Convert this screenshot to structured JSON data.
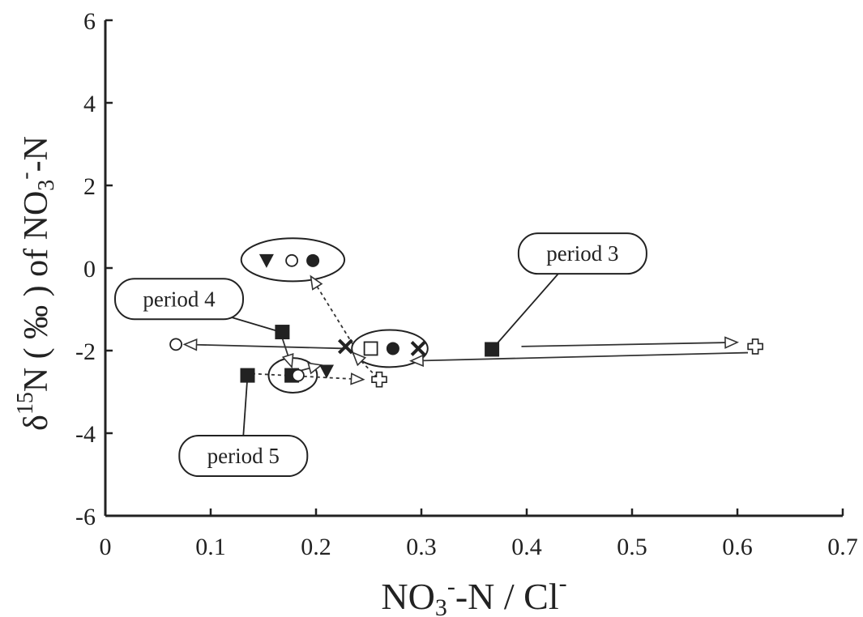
{
  "chart_data": {
    "type": "scatter",
    "title": "",
    "xlabel": {
      "main": "NO",
      "sub": "3",
      "sup": "-",
      "rest": "-N / Cl",
      "sup2": "-"
    },
    "ylabel": {
      "delta": "δ",
      "sup": "15",
      "mid": "N ( ‰ ) of NO",
      "sub": "3",
      "sup2": "-",
      "rest": "-N"
    },
    "xlim": [
      0,
      0.7
    ],
    "ylim": [
      -6,
      6
    ],
    "x_ticks": [
      0,
      0.1,
      0.2,
      0.3,
      0.4,
      0.5,
      0.6,
      0.7
    ],
    "x_tick_labels": [
      "0",
      "0.1",
      "0.2",
      "0.3",
      "0.4",
      "0.5",
      "0.6",
      "0.7"
    ],
    "y_ticks": [
      -6,
      -4,
      -2,
      0,
      2,
      4,
      6
    ],
    "y_tick_labels": [
      "-6",
      "-4",
      "-2",
      "0",
      "2",
      "4",
      "6"
    ],
    "grid": false,
    "points": [
      {
        "marker": "open-circle",
        "x": 0.067,
        "y": -1.85
      },
      {
        "marker": "filled-square",
        "x": 0.168,
        "y": -1.55
      },
      {
        "marker": "filled-square",
        "x": 0.135,
        "y": -2.6
      },
      {
        "marker": "filled-square",
        "x": 0.177,
        "y": -2.6
      },
      {
        "marker": "open-circle",
        "x": 0.183,
        "y": -2.6
      },
      {
        "marker": "filled-triangle-down",
        "x": 0.21,
        "y": -2.5
      },
      {
        "marker": "open-cross",
        "x": 0.26,
        "y": -2.7
      },
      {
        "marker": "x-mark",
        "x": 0.228,
        "y": -1.9
      },
      {
        "marker": "open-square",
        "x": 0.252,
        "y": -1.95
      },
      {
        "marker": "filled-circle",
        "x": 0.273,
        "y": -1.95
      },
      {
        "marker": "x-mark",
        "x": 0.297,
        "y": -1.95
      },
      {
        "marker": "filled-square",
        "x": 0.367,
        "y": -1.97
      },
      {
        "marker": "open-cross",
        "x": 0.617,
        "y": -1.9
      },
      {
        "marker": "filled-triangle-down",
        "x": 0.153,
        "y": 0.18
      },
      {
        "marker": "open-circle",
        "x": 0.177,
        "y": 0.18
      },
      {
        "marker": "filled-circle",
        "x": 0.197,
        "y": 0.18
      }
    ],
    "arrows": [
      {
        "style": "solid",
        "from": [
          0.228,
          -1.95
        ],
        "to": [
          0.075,
          -1.85
        ]
      },
      {
        "style": "solid",
        "from": [
          0.395,
          -1.9
        ],
        "to": [
          0.6,
          -1.8
        ]
      },
      {
        "style": "solid",
        "from": [
          0.61,
          -2.05
        ],
        "to": [
          0.29,
          -2.25
        ]
      },
      {
        "style": "solid",
        "from": [
          0.168,
          -1.7
        ],
        "to": [
          0.177,
          -2.4
        ]
      },
      {
        "style": "solid",
        "from": [
          0.183,
          -2.5
        ],
        "to": [
          0.205,
          -2.35
        ]
      },
      {
        "style": "dotted",
        "from": [
          0.133,
          -2.55
        ],
        "to": [
          0.245,
          -2.7
        ]
      },
      {
        "style": "dotted",
        "from": [
          0.258,
          -2.65
        ],
        "to": [
          0.235,
          -2.05
        ]
      },
      {
        "style": "dotted",
        "from": [
          0.235,
          -1.85
        ],
        "to": [
          0.195,
          -0.2
        ]
      }
    ],
    "ellipses": [
      {
        "cx": 0.178,
        "cy": 0.2,
        "rx": 0.049,
        "ry": 0.52
      },
      {
        "cx": 0.27,
        "cy": -1.95,
        "rx": 0.036,
        "ry": 0.45
      },
      {
        "cx": 0.178,
        "cy": -2.6,
        "rx": 0.023,
        "ry": 0.42
      }
    ],
    "annotations": [
      {
        "text": "period 3",
        "cx": 0.453,
        "cy": 0.35,
        "leader_to": [
          0.367,
          -1.97
        ]
      },
      {
        "text": "period 4",
        "cx": 0.07,
        "cy": -0.75,
        "leader_to": [
          0.168,
          -1.55
        ]
      },
      {
        "text": "period 5",
        "cx": 0.131,
        "cy": -4.55,
        "leader_to": [
          0.135,
          -2.6
        ]
      }
    ]
  }
}
